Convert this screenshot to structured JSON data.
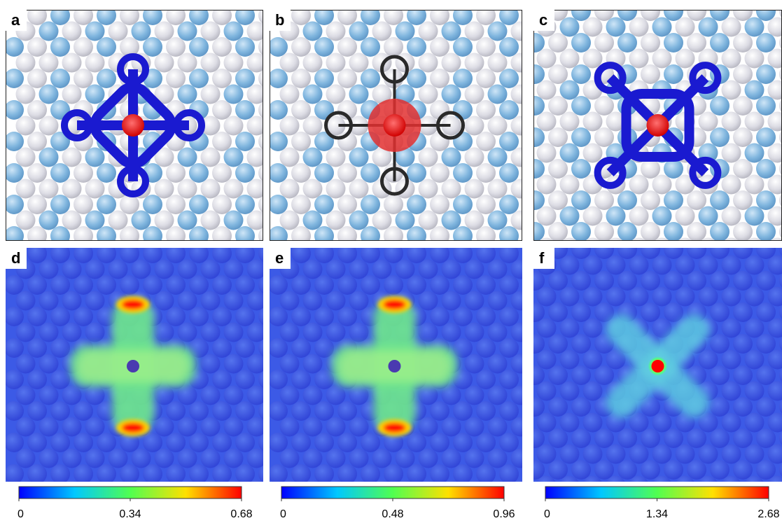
{
  "panels": [
    {
      "label": "a"
    },
    {
      "label": "b"
    },
    {
      "label": "c"
    },
    {
      "label": "d"
    },
    {
      "label": "e"
    },
    {
      "label": "f"
    }
  ],
  "colorbars": [
    {
      "ticks": [
        0,
        0.34,
        0.68
      ]
    },
    {
      "ticks": [
        0,
        0.48,
        0.96
      ]
    },
    {
      "ticks": [
        0,
        1.34,
        2.68
      ]
    }
  ]
}
